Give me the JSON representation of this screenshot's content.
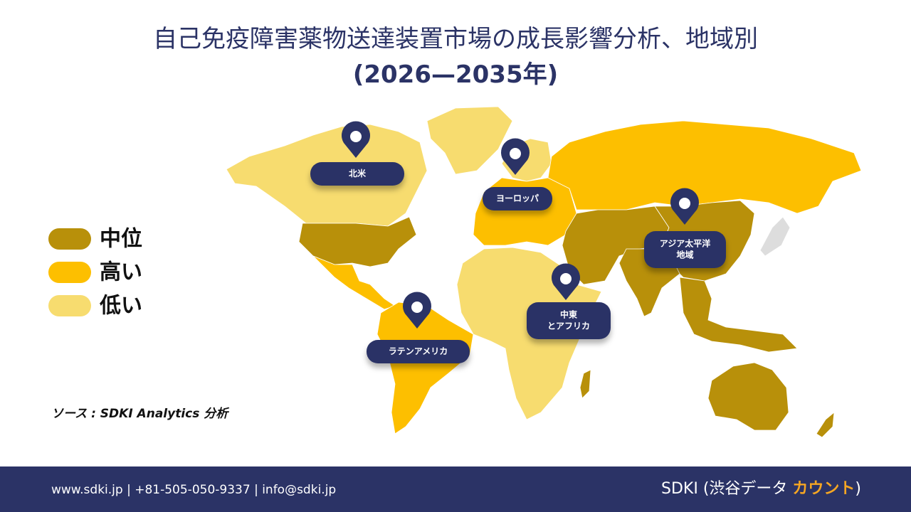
{
  "header": {
    "title": "自己免疫障害薬物送達装置市場の成長影響分析、地域別",
    "subtitle": "(2026—2035年)"
  },
  "legend": [
    {
      "label": "中位",
      "color": "#b8900a"
    },
    {
      "label": "高い",
      "color": "#fdbf00"
    },
    {
      "label": "低い",
      "color": "#f7dc6f"
    }
  ],
  "regions": [
    {
      "lines": [
        "北米"
      ]
    },
    {
      "lines": [
        "ヨーロッパ"
      ]
    },
    {
      "lines": [
        "アジア太平洋",
        "地域"
      ]
    },
    {
      "lines": [
        "中東",
        "とアフリカ"
      ]
    },
    {
      "lines": [
        "ラテンアメリカ"
      ]
    }
  ],
  "source": "ソース : SDKI Analytics 分析",
  "footer": {
    "contact": "www.sdki.jp | +81-505-050-9337 | info@sdki.jp",
    "brand": "SDKI (渋谷データ ",
    "brand_accent": "カウント",
    "brand_end": ")"
  }
}
